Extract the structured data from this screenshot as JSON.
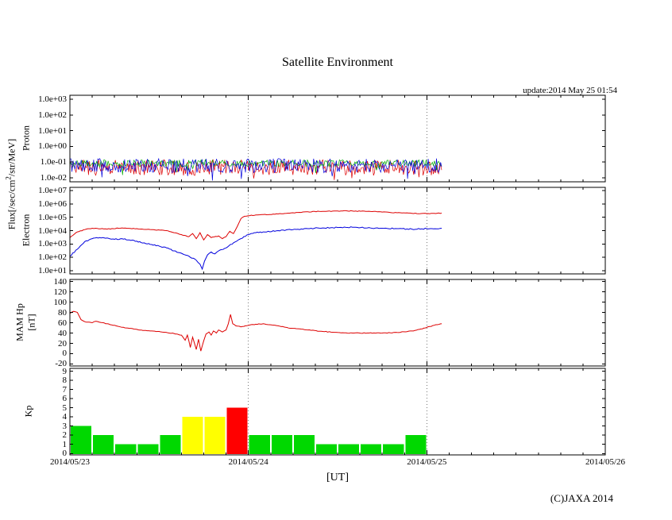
{
  "title": "Satellite Environment",
  "update_text": "update:2014 May 25 01:54",
  "copyright": "(C)JAXA 2014",
  "flux_axis_label": {
    "prefix": "Flux[/sec/cm",
    "sup": "2",
    "suffix": "/str/MeV]"
  },
  "x_axis": {
    "title": "[UT]",
    "labels": [
      "2014/05/23",
      "2014/05/24",
      "2014/05/25",
      "2014/05/26"
    ],
    "range_hours": [
      0,
      72
    ],
    "hours_origin": "2014/05/23 00:00"
  },
  "chart_data": [
    {
      "id": "proton",
      "type": "line",
      "ylabel": "Proton",
      "yscale": "log",
      "ylim": [
        0.01,
        1000
      ],
      "yticks": [
        {
          "label": "1.0e+03",
          "value": 1000
        },
        {
          "label": "1.0e+02",
          "value": 100
        },
        {
          "label": "1.0e+01",
          "value": 10
        },
        {
          "label": "1.0e+00",
          "value": 1
        },
        {
          "label": "1.0e-01",
          "value": 0.1
        },
        {
          "label": "1.0e-02",
          "value": 0.01
        }
      ],
      "series": [
        {
          "name": "proton-channel-red",
          "color": "#dd0000",
          "render": "noise-band",
          "base": 0.045,
          "amplitude_decades": 0.5,
          "start_hour": 0,
          "end_hour": 50
        },
        {
          "name": "proton-channel-green",
          "color": "#00aa00",
          "render": "noise-band",
          "base": 0.085,
          "amplitude_decades": 0.22,
          "start_hour": 0,
          "end_hour": 50
        },
        {
          "name": "proton-channel-blue",
          "color": "#0000dd",
          "render": "noise-band",
          "base": 0.06,
          "amplitude_decades": 0.45,
          "start_hour": 0,
          "end_hour": 50
        }
      ]
    },
    {
      "id": "electron",
      "type": "line",
      "ylabel": "Electron",
      "yscale": "log",
      "ylim": [
        10,
        10000000
      ],
      "yticks": [
        {
          "label": "1.0e+07",
          "value": 10000000
        },
        {
          "label": "1.0e+06",
          "value": 1000000
        },
        {
          "label": "1.0e+05",
          "value": 100000
        },
        {
          "label": "1.0e+04",
          "value": 10000
        },
        {
          "label": "1.0e+03",
          "value": 1000
        },
        {
          "label": "1.0e+02",
          "value": 100
        },
        {
          "label": "1.0e+01",
          "value": 10
        }
      ],
      "series": [
        {
          "name": "electron-high-energy",
          "color": "#dd0000",
          "render": "keypoints",
          "jitter_decades": 0.05,
          "points": [
            [
              0,
              3000
            ],
            [
              1,
              8000
            ],
            [
              2,
              12000
            ],
            [
              3,
              15000
            ],
            [
              5,
              13000
            ],
            [
              7,
              16000
            ],
            [
              9,
              14000
            ],
            [
              11,
              12000
            ],
            [
              13,
              10000
            ],
            [
              14,
              7000
            ],
            [
              15,
              5000
            ],
            [
              16,
              3500
            ],
            [
              16.5,
              6000
            ],
            [
              17,
              2500
            ],
            [
              17.5,
              7000
            ],
            [
              18,
              2000
            ],
            [
              18.5,
              5000
            ],
            [
              19,
              3000
            ],
            [
              20,
              4000
            ],
            [
              20.5,
              2500
            ],
            [
              21,
              3500
            ],
            [
              21.5,
              9000
            ],
            [
              22,
              6000
            ],
            [
              22.5,
              20000
            ],
            [
              23,
              80000
            ],
            [
              23.5,
              120000
            ],
            [
              24,
              130000
            ],
            [
              25,
              150000
            ],
            [
              26,
              160000
            ],
            [
              28,
              180000
            ],
            [
              30,
              220000
            ],
            [
              32,
              260000
            ],
            [
              34,
              280000
            ],
            [
              36,
              300000
            ],
            [
              38,
              300000
            ],
            [
              40,
              280000
            ],
            [
              42,
              250000
            ],
            [
              44,
              220000
            ],
            [
              46,
              200000
            ],
            [
              48,
              190000
            ],
            [
              49,
              200000
            ],
            [
              50,
              210000
            ]
          ]
        },
        {
          "name": "electron-low-energy",
          "color": "#0000dd",
          "render": "keypoints",
          "jitter_decades": 0.08,
          "points": [
            [
              0,
              120
            ],
            [
              1,
              400
            ],
            [
              2,
              1500
            ],
            [
              3,
              2500
            ],
            [
              4,
              3000
            ],
            [
              5,
              2800
            ],
            [
              6,
              2200
            ],
            [
              7,
              2500
            ],
            [
              8,
              2000
            ],
            [
              9,
              1600
            ],
            [
              10,
              1200
            ],
            [
              11,
              900
            ],
            [
              12,
              700
            ],
            [
              13,
              500
            ],
            [
              14,
              300
            ],
            [
              15,
              200
            ],
            [
              16,
              120
            ],
            [
              17,
              60
            ],
            [
              17.5,
              30
            ],
            [
              17.8,
              13
            ],
            [
              18.1,
              50
            ],
            [
              18.5,
              150
            ],
            [
              19,
              250
            ],
            [
              19.5,
              180
            ],
            [
              20,
              300
            ],
            [
              21,
              500
            ],
            [
              22,
              1200
            ],
            [
              23,
              2500
            ],
            [
              24,
              5000
            ],
            [
              25,
              7000
            ],
            [
              26,
              8000
            ],
            [
              28,
              10000
            ],
            [
              30,
              12000
            ],
            [
              32,
              14000
            ],
            [
              34,
              16000
            ],
            [
              36,
              17000
            ],
            [
              38,
              18000
            ],
            [
              40,
              16000
            ],
            [
              42,
              15000
            ],
            [
              44,
              14000
            ],
            [
              46,
              13000
            ],
            [
              48,
              14000
            ],
            [
              50,
              15000
            ]
          ]
        }
      ]
    },
    {
      "id": "mam-hp",
      "type": "line",
      "ylabel_line1": "MAM Hp",
      "ylabel_line2": "[nT]",
      "yscale": "linear",
      "ylim": [
        -20,
        140
      ],
      "yticks": [
        {
          "label": "140",
          "value": 140
        },
        {
          "label": "120",
          "value": 120
        },
        {
          "label": "100",
          "value": 100
        },
        {
          "label": "80",
          "value": 80
        },
        {
          "label": "60",
          "value": 60
        },
        {
          "label": "40",
          "value": 40
        },
        {
          "label": "20",
          "value": 20
        },
        {
          "label": "0",
          "value": 0
        },
        {
          "label": "-20",
          "value": -20
        }
      ],
      "series": [
        {
          "name": "hp-magnetic-field",
          "color": "#dd0000",
          "render": "keypoints",
          "jitter": 1.2,
          "points": [
            [
              0,
              78
            ],
            [
              0.5,
              82
            ],
            [
              1,
              80
            ],
            [
              1.5,
              66
            ],
            [
              2,
              62
            ],
            [
              3,
              60
            ],
            [
              3.5,
              63
            ],
            [
              4,
              61
            ],
            [
              5,
              58
            ],
            [
              6,
              55
            ],
            [
              7,
              51
            ],
            [
              8,
              49
            ],
            [
              9,
              47
            ],
            [
              10,
              45
            ],
            [
              11,
              44
            ],
            [
              12,
              43
            ],
            [
              13,
              41
            ],
            [
              14,
              39
            ],
            [
              15,
              36
            ],
            [
              15.5,
              26
            ],
            [
              15.8,
              36
            ],
            [
              16.2,
              12
            ],
            [
              16.5,
              32
            ],
            [
              17,
              8
            ],
            [
              17.3,
              28
            ],
            [
              17.6,
              5
            ],
            [
              18,
              25
            ],
            [
              18.3,
              38
            ],
            [
              18.7,
              42
            ],
            [
              19,
              36
            ],
            [
              19.3,
              44
            ],
            [
              19.7,
              40
            ],
            [
              20,
              46
            ],
            [
              20.5,
              42
            ],
            [
              21,
              46
            ],
            [
              21.3,
              58
            ],
            [
              21.6,
              76
            ],
            [
              21.9,
              58
            ],
            [
              22.3,
              54
            ],
            [
              23,
              52
            ],
            [
              24,
              55
            ],
            [
              25,
              57
            ],
            [
              26,
              58
            ],
            [
              27,
              56
            ],
            [
              28,
              54
            ],
            [
              29,
              51
            ],
            [
              30,
              49
            ],
            [
              32,
              46
            ],
            [
              34,
              43
            ],
            [
              36,
              41
            ],
            [
              38,
              40
            ],
            [
              40,
              40
            ],
            [
              42,
              40
            ],
            [
              44,
              41
            ],
            [
              46,
              44
            ],
            [
              47,
              47
            ],
            [
              48,
              51
            ],
            [
              49,
              55
            ],
            [
              50,
              58
            ]
          ]
        }
      ]
    },
    {
      "id": "kp",
      "type": "bar",
      "ylabel": "Kp",
      "yscale": "linear",
      "ylim": [
        0,
        9
      ],
      "yticks": [
        {
          "label": "9",
          "value": 9
        },
        {
          "label": "8",
          "value": 8
        },
        {
          "label": "7",
          "value": 7
        },
        {
          "label": "6",
          "value": 6
        },
        {
          "label": "5",
          "value": 5
        },
        {
          "label": "4",
          "value": 4
        },
        {
          "label": "3",
          "value": 3
        },
        {
          "label": "2",
          "value": 2
        },
        {
          "label": "1",
          "value": 1
        },
        {
          "label": "0",
          "value": 0
        }
      ],
      "bar_width_hours": 3,
      "values": [
        3,
        2,
        1,
        1,
        2,
        4,
        4,
        5,
        2,
        2,
        2,
        1,
        1,
        1,
        1,
        2
      ],
      "colors": [
        "#00d800",
        "#00d800",
        "#00d800",
        "#00d800",
        "#00d800",
        "#ffff00",
        "#ffff00",
        "#ff0000",
        "#00d800",
        "#00d800",
        "#00d800",
        "#00d800",
        "#00d800",
        "#00d800",
        "#00d800",
        "#00d800"
      ],
      "color_legend": {
        "quiet": "#00d800",
        "active": "#ffff00",
        "storm": "#ff0000"
      }
    }
  ]
}
